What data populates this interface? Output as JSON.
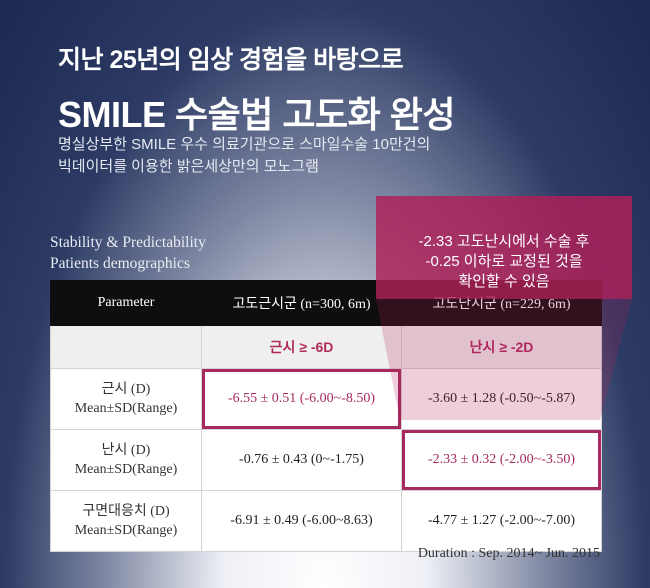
{
  "heading": {
    "subtitle": "지난 25년의 임상 경험을 바탕으로",
    "title": "SMILE 수술법 고도화 완성"
  },
  "description": {
    "line1": "명실상부한 SMILE 우수 의료기관으로 스마일수술 10만건의",
    "line2": "빅데이터를 이용한 밝은세상만의 모노그램"
  },
  "section": {
    "line1": "Stability & Predictability",
    "line2": "Patients demographics"
  },
  "table": {
    "headers": [
      "Parameter",
      "고도근시군 (n=300, 6m)",
      "고도난시군 (n=229, 6m)"
    ],
    "conditions": [
      "",
      "근시 ≥ -6D",
      "난시 ≥ -2D"
    ],
    "rows": [
      {
        "param_line1": "근시 (D)",
        "param_line2": "Mean±SD(Range)",
        "col1": "-6.55 ± 0.51 (-6.00~-8.50)",
        "col2": "-3.60 ± 1.28 (-0.50~-5.87)"
      },
      {
        "param_line1": "난시 (D)",
        "param_line2": "Mean±SD(Range)",
        "col1": "-0.76 ± 0.43 (0~-1.75)",
        "col2": "-2.33 ± 0.32 (-2.00~-3.50)"
      },
      {
        "param_line1": "구면대응치 (D)",
        "param_line2": "Mean±SD(Range)",
        "col1": "-6.91 ± 0.49 (-6.00~8.63)",
        "col2": "-4.77 ± 1.27 (-2.00~-7.00)"
      }
    ]
  },
  "callout": {
    "line1": "-2.33 고도난시에서 수술 후",
    "line2": "-0.25 이하로 교정된 것을",
    "line3": "확인할 수 있음"
  },
  "footer": {
    "duration": "Duration : Sep. 2014~ Jun. 2015"
  },
  "colors": {
    "accent": "#a8295e",
    "background": "#1c2a52",
    "header": "#0e0e0e"
  }
}
